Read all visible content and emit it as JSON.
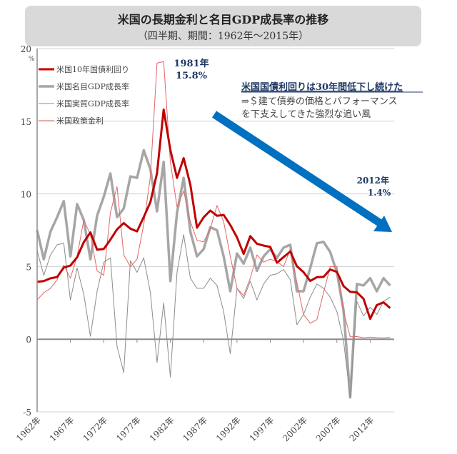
{
  "chart_data": {
    "type": "line",
    "title": "米国の長期金利と名目GDP成長率の推移",
    "subtitle": "（四半期、期間：1962年～2015年）",
    "yunit": "%",
    "ylim": [
      -5,
      20
    ],
    "yticks": [
      -5,
      0,
      5,
      10,
      15,
      20
    ],
    "xlim": [
      1962,
      2015.6
    ],
    "xticks": [
      "1962年",
      "1967年",
      "1972年",
      "1977年",
      "1982年",
      "1987年",
      "1992年",
      "1997年",
      "2002年",
      "2007年",
      "2012年"
    ],
    "grid": true,
    "legend_placement": "top-left",
    "x": [
      1962,
      1963,
      1964,
      1965,
      1966,
      1967,
      1968,
      1969,
      1970,
      1971,
      1972,
      1973,
      1974,
      1975,
      1976,
      1977,
      1978,
      1979,
      1980,
      1981,
      1982,
      1983,
      1984,
      1985,
      1986,
      1987,
      1988,
      1989,
      1990,
      1991,
      1992,
      1993,
      1994,
      1995,
      1996,
      1997,
      1998,
      1999,
      2000,
      2001,
      2002,
      2003,
      2004,
      2005,
      2006,
      2007,
      2008,
      2009,
      2010,
      2011,
      2012,
      2013,
      2014,
      2015
    ],
    "series": [
      {
        "name": "米国10年国債利回り",
        "color": "#c00000",
        "width": 3,
        "values": [
          3.95,
          4.0,
          4.19,
          4.28,
          4.93,
          5.07,
          5.64,
          6.67,
          7.35,
          6.16,
          6.21,
          6.85,
          7.56,
          7.99,
          7.61,
          7.42,
          8.41,
          9.43,
          11.43,
          15.8,
          13.01,
          11.1,
          12.46,
          10.62,
          7.67,
          8.39,
          8.85,
          8.49,
          8.55,
          7.86,
          7.01,
          5.87,
          7.09,
          6.57,
          6.44,
          6.35,
          5.26,
          5.65,
          6.03,
          5.02,
          4.61,
          4.01,
          4.27,
          4.29,
          4.8,
          4.63,
          3.66,
          3.26,
          3.22,
          2.78,
          1.4,
          2.35,
          2.54,
          2.14
        ]
      },
      {
        "name": "米国名目GDP成長率",
        "color": "#a6a6a6",
        "width": 3.5,
        "values": [
          7.5,
          5.5,
          7.4,
          8.4,
          9.5,
          5.7,
          9.3,
          8.2,
          5.5,
          8.5,
          9.8,
          11.4,
          8.4,
          9.0,
          11.2,
          11.1,
          13.0,
          11.7,
          8.8,
          12.2,
          4.0,
          8.7,
          11.1,
          7.4,
          5.7,
          6.2,
          7.7,
          7.5,
          5.7,
          3.3,
          5.9,
          5.2,
          6.3,
          4.7,
          5.7,
          6.2,
          5.6,
          6.3,
          6.5,
          3.3,
          3.3,
          4.9,
          6.6,
          6.7,
          6.0,
          4.6,
          2.0,
          -4.0,
          3.8,
          3.7,
          4.2,
          3.3,
          4.2,
          3.7
        ]
      },
      {
        "name": "米国実質GDP成長率",
        "color": "#8c8c8c",
        "width": 1,
        "values": [
          6.1,
          4.4,
          5.8,
          6.5,
          6.6,
          2.7,
          4.9,
          3.1,
          0.2,
          3.3,
          5.3,
          5.6,
          -0.5,
          -2.3,
          5.4,
          4.6,
          5.6,
          3.2,
          -1.6,
          2.5,
          -2.6,
          4.6,
          7.2,
          4.2,
          3.5,
          3.5,
          4.2,
          3.7,
          1.9,
          -1.0,
          3.5,
          2.8,
          4.0,
          2.7,
          3.8,
          4.4,
          4.5,
          4.8,
          4.1,
          1.0,
          1.7,
          2.9,
          3.8,
          3.5,
          2.9,
          1.9,
          -0.1,
          -4.0,
          2.6,
          1.6,
          2.2,
          1.7,
          2.6,
          2.9
        ]
      },
      {
        "name": "米国政策金利",
        "color": "#e06666",
        "width": 1,
        "values": [
          2.7,
          3.2,
          3.5,
          4.1,
          5.1,
          4.2,
          5.7,
          8.2,
          7.2,
          4.7,
          4.4,
          8.7,
          10.5,
          5.8,
          5.0,
          5.5,
          7.9,
          11.2,
          19.0,
          19.1,
          12.2,
          9.1,
          10.2,
          8.1,
          6.8,
          6.7,
          7.6,
          9.2,
          8.1,
          5.7,
          3.5,
          3.0,
          4.2,
          5.8,
          5.3,
          5.5,
          5.35,
          5.0,
          6.2,
          3.9,
          1.7,
          1.1,
          1.35,
          3.2,
          5.0,
          5.0,
          1.9,
          0.16,
          0.18,
          0.1,
          0.14,
          0.11,
          0.09,
          0.13
        ]
      }
    ],
    "annotations": {
      "peak_year": "1981年",
      "peak_value": "15.8%",
      "low_year": "2012年",
      "low_value": "1.4%",
      "headline": "米国国債利回りは30年間低下し続けた",
      "line1": "⇒＄建て債券の価格とパフォーマンス",
      "line2": "を下支えしてきた強烈な追い風",
      "arrow_color": "#0070c0"
    }
  }
}
